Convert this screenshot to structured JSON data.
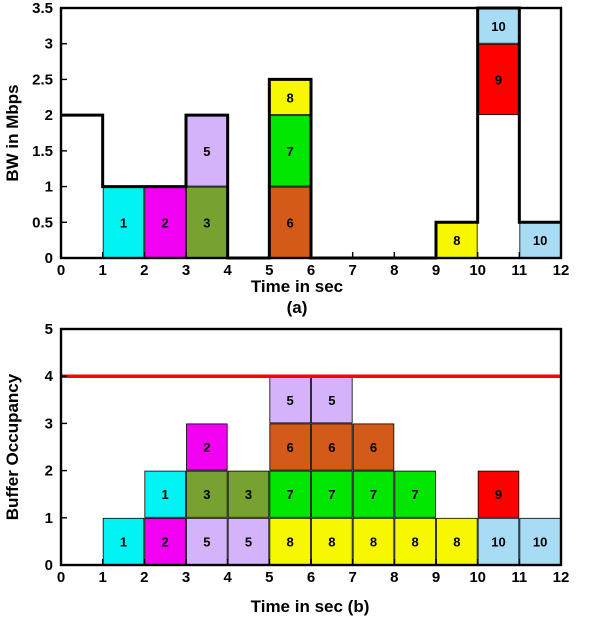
{
  "colors": {
    "1": "#00f2f2",
    "2": "#f200f2",
    "3": "#77a22f",
    "5": "#d4b3fa",
    "6": "#d45a1a",
    "7": "#00e600",
    "8": "#f7f700",
    "9": "#ff0000",
    "10": "#a8dcf5",
    "threshold": "#ff0000"
  },
  "chart_data": [
    {
      "type": "bar",
      "panel_label": "(a)",
      "xlabel": "Time in sec",
      "ylabel": "BW in Mbps",
      "xlim": [
        0,
        12
      ],
      "ylim": [
        0,
        3.5
      ],
      "xticks": [
        "0",
        "1",
        "2",
        "3",
        "4",
        "5",
        "6",
        "7",
        "8",
        "9",
        "10",
        "11",
        "12"
      ],
      "yticks": [
        "0",
        "0.5",
        "1",
        "1.5",
        "2",
        "2.5",
        "3",
        "3.5"
      ],
      "bandwidth_profile": [
        [
          0,
          2
        ],
        [
          1,
          2
        ],
        [
          1,
          1
        ],
        [
          3,
          1
        ],
        [
          3,
          2
        ],
        [
          4,
          2
        ],
        [
          4,
          0
        ],
        [
          5,
          0
        ],
        [
          5,
          2.5
        ],
        [
          6,
          2.5
        ],
        [
          6,
          0
        ],
        [
          9,
          0
        ],
        [
          9,
          0.5
        ],
        [
          10,
          0.5
        ],
        [
          10,
          3.5
        ],
        [
          11,
          3.5
        ],
        [
          11,
          0.5
        ],
        [
          12,
          0.5
        ]
      ],
      "blocks": [
        {
          "label": "1",
          "x0": 1,
          "x1": 2,
          "y0": 0,
          "y1": 1
        },
        {
          "label": "2",
          "x0": 2,
          "x1": 3,
          "y0": 0,
          "y1": 1
        },
        {
          "label": "3",
          "x0": 3,
          "x1": 4,
          "y0": 0,
          "y1": 1
        },
        {
          "label": "5",
          "x0": 3,
          "x1": 4,
          "y0": 1,
          "y1": 2
        },
        {
          "label": "6",
          "x0": 5,
          "x1": 6,
          "y0": 0,
          "y1": 1
        },
        {
          "label": "7",
          "x0": 5,
          "x1": 6,
          "y0": 1,
          "y1": 2
        },
        {
          "label": "8",
          "x0": 5,
          "x1": 6,
          "y0": 2,
          "y1": 2.5
        },
        {
          "label": "8",
          "x0": 9,
          "x1": 10,
          "y0": 0,
          "y1": 0.5
        },
        {
          "label": "9",
          "x0": 10,
          "x1": 11,
          "y0": 2,
          "y1": 3
        },
        {
          "label": "10",
          "x0": 10,
          "x1": 11,
          "y0": 3,
          "y1": 3.5
        },
        {
          "label": "10",
          "x0": 11,
          "x1": 12,
          "y0": 0,
          "y1": 0.5
        }
      ]
    },
    {
      "type": "bar",
      "xlabel": "Time in sec (b)",
      "ylabel": "Buffer Occupancy",
      "xlim": [
        0,
        12
      ],
      "ylim": [
        0,
        5
      ],
      "xticks": [
        "0",
        "1",
        "2",
        "3",
        "4",
        "5",
        "6",
        "7",
        "8",
        "9",
        "10",
        "11",
        "12"
      ],
      "yticks": [
        "0",
        "1",
        "2",
        "3",
        "4",
        "5"
      ],
      "threshold": 4,
      "blocks": [
        {
          "label": "1",
          "x0": 1,
          "x1": 2,
          "y0": 0,
          "y1": 1
        },
        {
          "label": "2",
          "x0": 2,
          "x1": 3,
          "y0": 0,
          "y1": 1
        },
        {
          "label": "1",
          "x0": 2,
          "x1": 3,
          "y0": 1,
          "y1": 2
        },
        {
          "label": "5",
          "x0": 3,
          "x1": 4,
          "y0": 0,
          "y1": 1
        },
        {
          "label": "3",
          "x0": 3,
          "x1": 4,
          "y0": 1,
          "y1": 2
        },
        {
          "label": "2",
          "x0": 3,
          "x1": 4,
          "y0": 2,
          "y1": 3
        },
        {
          "label": "5",
          "x0": 4,
          "x1": 5,
          "y0": 0,
          "y1": 1
        },
        {
          "label": "3",
          "x0": 4,
          "x1": 5,
          "y0": 1,
          "y1": 2
        },
        {
          "label": "8",
          "x0": 5,
          "x1": 6,
          "y0": 0,
          "y1": 1
        },
        {
          "label": "7",
          "x0": 5,
          "x1": 6,
          "y0": 1,
          "y1": 2
        },
        {
          "label": "6",
          "x0": 5,
          "x1": 6,
          "y0": 2,
          "y1": 3
        },
        {
          "label": "5",
          "x0": 5,
          "x1": 6,
          "y0": 3,
          "y1": 4
        },
        {
          "label": "8",
          "x0": 6,
          "x1": 7,
          "y0": 0,
          "y1": 1
        },
        {
          "label": "7",
          "x0": 6,
          "x1": 7,
          "y0": 1,
          "y1": 2
        },
        {
          "label": "6",
          "x0": 6,
          "x1": 7,
          "y0": 2,
          "y1": 3
        },
        {
          "label": "5",
          "x0": 6,
          "x1": 7,
          "y0": 3,
          "y1": 4
        },
        {
          "label": "8",
          "x0": 7,
          "x1": 8,
          "y0": 0,
          "y1": 1
        },
        {
          "label": "7",
          "x0": 7,
          "x1": 8,
          "y0": 1,
          "y1": 2
        },
        {
          "label": "6",
          "x0": 7,
          "x1": 8,
          "y0": 2,
          "y1": 3
        },
        {
          "label": "8",
          "x0": 8,
          "x1": 9,
          "y0": 0,
          "y1": 1
        },
        {
          "label": "7",
          "x0": 8,
          "x1": 9,
          "y0": 1,
          "y1": 2
        },
        {
          "label": "8",
          "x0": 9,
          "x1": 10,
          "y0": 0,
          "y1": 1
        },
        {
          "label": "10",
          "x0": 10,
          "x1": 11,
          "y0": 0,
          "y1": 1
        },
        {
          "label": "9",
          "x0": 10,
          "x1": 11,
          "y0": 1,
          "y1": 2
        },
        {
          "label": "10",
          "x0": 11,
          "x1": 12,
          "y0": 0,
          "y1": 1
        }
      ]
    }
  ]
}
